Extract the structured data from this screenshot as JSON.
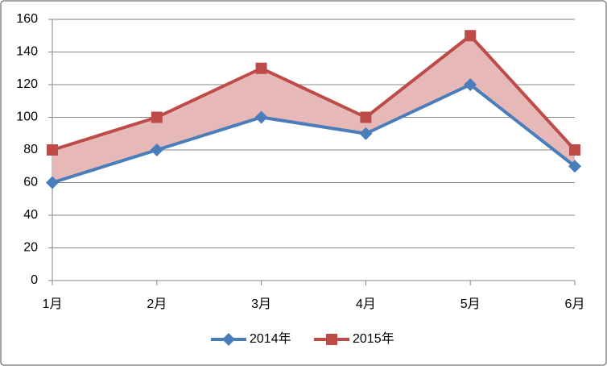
{
  "chart_data": {
    "type": "line",
    "categories": [
      "1月",
      "2月",
      "3月",
      "4月",
      "5月",
      "6月"
    ],
    "series": [
      {
        "name": "2014年",
        "color": "#4a7ebb",
        "marker": "diamond",
        "values": [
          60,
          80,
          100,
          90,
          120,
          70
        ]
      },
      {
        "name": "2015年",
        "color": "#be4b48",
        "marker": "square",
        "values": [
          80,
          100,
          130,
          100,
          150,
          80
        ]
      }
    ],
    "fill_between_color": "#e6b9b8",
    "ylim": [
      0,
      160
    ],
    "yticks": [
      0,
      20,
      40,
      60,
      80,
      100,
      120,
      140,
      160
    ],
    "grid": true,
    "legend": "bottom"
  }
}
